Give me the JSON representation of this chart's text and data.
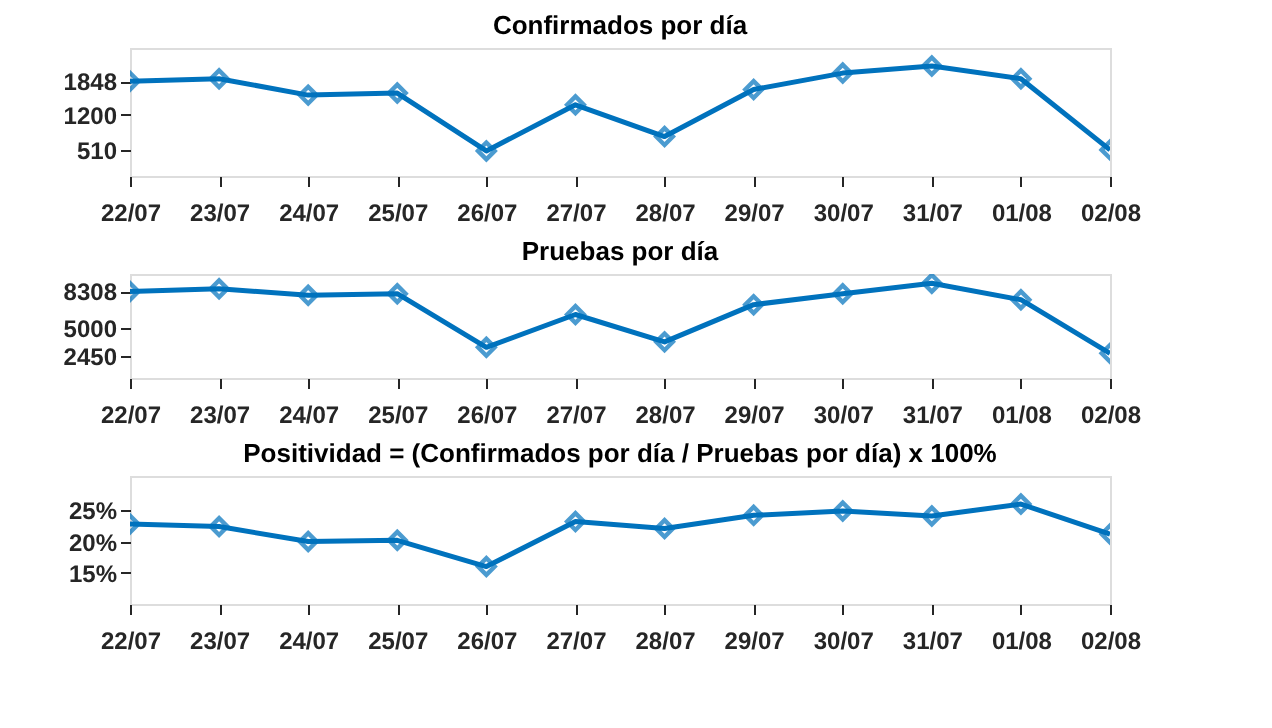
{
  "chart_data": [
    {
      "type": "line",
      "title": "Confirmados por día",
      "categories": [
        "22/07",
        "23/07",
        "24/07",
        "25/07",
        "26/07",
        "27/07",
        "28/07",
        "29/07",
        "30/07",
        "31/07",
        "01/08",
        "02/08"
      ],
      "series": [
        {
          "color": "#0072bd",
          "values": [
            1850,
            1900,
            1580,
            1620,
            490,
            1390,
            770,
            1690,
            2010,
            2150,
            1900,
            510
          ]
        }
      ],
      "ylim": [
        0,
        2500
      ],
      "yticks": [
        510,
        1200,
        1848
      ],
      "grid": false,
      "marker": "diamond",
      "line_style": "solid"
    },
    {
      "type": "line",
      "title": "Pruebas por día",
      "categories": [
        "22/07",
        "23/07",
        "24/07",
        "25/07",
        "26/07",
        "27/07",
        "28/07",
        "29/07",
        "30/07",
        "31/07",
        "01/08",
        "02/08"
      ],
      "series": [
        {
          "color": "#0072bd",
          "values": [
            8300,
            8550,
            7950,
            8100,
            3200,
            6200,
            3700,
            7100,
            8100,
            9050,
            7550,
            2650
          ]
        }
      ],
      "ylim": [
        400,
        9900
      ],
      "yticks": [
        2450,
        5000,
        8308
      ],
      "grid": false,
      "marker": "diamond",
      "line_style": "solid"
    },
    {
      "type": "line",
      "title": "Positividad = (Confirmados por día / Pruebas por día) x 100%",
      "categories": [
        "22/07",
        "23/07",
        "24/07",
        "25/07",
        "26/07",
        "27/07",
        "28/07",
        "29/07",
        "30/07",
        "31/07",
        "01/08",
        "02/08"
      ],
      "series": [
        {
          "color": "#0072bd",
          "values": [
            22.8,
            22.4,
            20.0,
            20.2,
            16.0,
            23.2,
            22.1,
            24.2,
            24.9,
            24.1,
            26.0,
            21.2
          ]
        }
      ],
      "ylim": [
        10,
        30.5
      ],
      "yticks": [
        {
          "value": 15,
          "label": "15%"
        },
        {
          "value": 20,
          "label": "20%"
        },
        {
          "value": 25,
          "label": "25%"
        }
      ],
      "grid": false,
      "marker": "diamond",
      "line_style": "solid"
    }
  ]
}
